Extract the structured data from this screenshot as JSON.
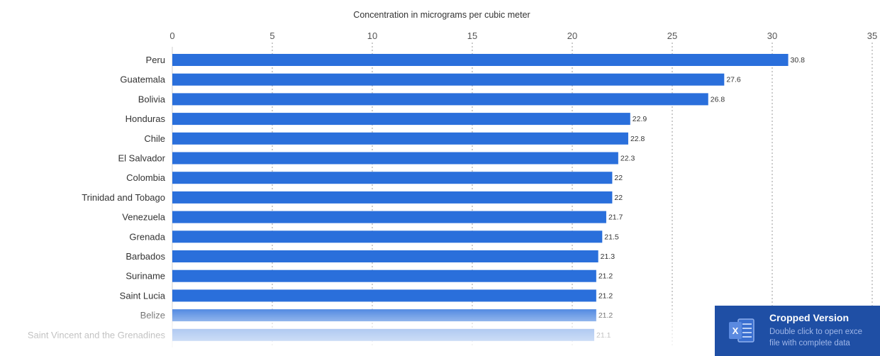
{
  "chart_data": {
    "type": "bar",
    "orientation": "horizontal",
    "title": "",
    "xlabel": "Concentration in micrograms per cubic meter",
    "ylabel": "",
    "xlim": [
      0,
      35
    ],
    "x_ticks": [
      0,
      5,
      10,
      15,
      20,
      25,
      30,
      35
    ],
    "grid": "vertical dotted",
    "bar_color": "#2a6fdb",
    "categories": [
      "Peru",
      "Guatemala",
      "Bolivia",
      "Honduras",
      "Chile",
      "El Salvador",
      "Colombia",
      "Trinidad and Tobago",
      "Venezuela",
      "Grenada",
      "Barbados",
      "Suriname",
      "Saint Lucia",
      "Belize",
      "Saint Vincent and the Grenadines"
    ],
    "values": [
      30.8,
      27.6,
      26.8,
      22.9,
      22.8,
      22.3,
      22,
      22,
      21.7,
      21.5,
      21.3,
      21.2,
      21.2,
      21.2,
      21.1
    ],
    "value_labels": [
      "30.8",
      "27.6",
      "26.8",
      "22.9",
      "22.8",
      "22.3",
      "22",
      "22",
      "21.7",
      "21.5",
      "21.3",
      "21.2",
      "21.2",
      "21.2",
      "21.1"
    ]
  },
  "overlay": {
    "title": "Cropped Version",
    "line1": "Double click to open exce",
    "line2": "file with complete data",
    "icon": "excel-icon",
    "background": "#1f4fa5"
  }
}
